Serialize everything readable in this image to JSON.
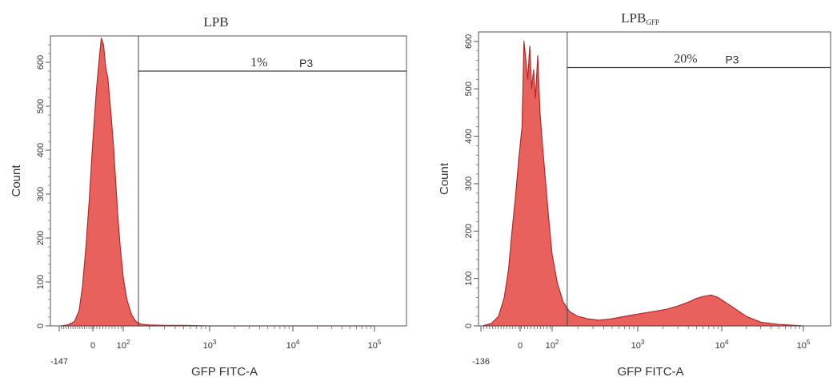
{
  "chart_data": [
    {
      "type": "area",
      "title": "LPB",
      "title_subscript": "",
      "xlabel": "GFP FITC-A",
      "ylabel": "Count",
      "x_scale": "biexponential",
      "xlim": [
        -147,
        100000
      ],
      "ylim": [
        0,
        660
      ],
      "x_ticks": [
        {
          "value": -147,
          "label": "-147",
          "exp": ""
        },
        {
          "value": 0,
          "label": "0",
          "exp": ""
        },
        {
          "value": 100,
          "label": "10",
          "exp": "2"
        },
        {
          "value": 1000,
          "label": "10",
          "exp": "3"
        },
        {
          "value": 10000,
          "label": "10",
          "exp": "4"
        },
        {
          "value": 100000,
          "label": "10",
          "exp": "5"
        }
      ],
      "y_ticks": [
        0,
        100,
        200,
        300,
        400,
        500,
        600
      ],
      "fill_color": "#e8615d",
      "edge_color": "#b22a28",
      "gate": {
        "name": "P3",
        "percent": "1%",
        "x_start": 150,
        "y_level": 580
      },
      "histogram": {
        "x": [
          -140,
          -110,
          -80,
          -60,
          -45,
          -30,
          -15,
          -5,
          0,
          5,
          12,
          20,
          28,
          35,
          42,
          50,
          55,
          60,
          68,
          75,
          82,
          90,
          100,
          110,
          125,
          140,
          160,
          200,
          300,
          500,
          1000,
          3000,
          100000
        ],
        "y": [
          0,
          2,
          10,
          35,
          90,
          180,
          290,
          380,
          420,
          470,
          540,
          600,
          655,
          640,
          590,
          560,
          520,
          480,
          410,
          330,
          250,
          180,
          110,
          60,
          25,
          10,
          4,
          2,
          1,
          1,
          0,
          0,
          0
        ]
      }
    },
    {
      "type": "area",
      "title": "LPB",
      "title_subscript": "GFP",
      "xlabel": "GFP FITC-A",
      "ylabel": "Count",
      "x_scale": "biexponential",
      "xlim": [
        -136,
        100000
      ],
      "ylim": [
        0,
        620
      ],
      "x_ticks": [
        {
          "value": -136,
          "label": "-136",
          "exp": ""
        },
        {
          "value": 0,
          "label": "0",
          "exp": ""
        },
        {
          "value": 100,
          "label": "10",
          "exp": "2"
        },
        {
          "value": 1000,
          "label": "10",
          "exp": "3"
        },
        {
          "value": 10000,
          "label": "10",
          "exp": "4"
        },
        {
          "value": 100000,
          "label": "10",
          "exp": "5"
        }
      ],
      "y_ticks": [
        0,
        100,
        200,
        300,
        400,
        500,
        600
      ],
      "fill_color": "#e8615d",
      "edge_color": "#b22a28",
      "gate": {
        "name": "P3",
        "percent": "20%",
        "x_start": 150,
        "y_level": 545
      },
      "histogram": {
        "x": [
          -130,
          -100,
          -75,
          -55,
          -40,
          -28,
          -15,
          -5,
          0,
          6,
          12,
          18,
          24,
          30,
          36,
          42,
          48,
          55,
          62,
          70,
          80,
          90,
          100,
          115,
          135,
          160,
          200,
          260,
          350,
          500,
          700,
          1000,
          1500,
          2200,
          3000,
          4000,
          5000,
          6000,
          7500,
          9000,
          11000,
          14000,
          20000,
          30000,
          50000,
          80000,
          100000
        ],
        "y": [
          0,
          5,
          20,
          60,
          120,
          200,
          280,
          350,
          380,
          420,
          600,
          560,
          520,
          590,
          500,
          540,
          480,
          570,
          450,
          380,
          300,
          220,
          150,
          90,
          50,
          30,
          20,
          15,
          12,
          15,
          20,
          25,
          30,
          35,
          42,
          50,
          58,
          62,
          65,
          60,
          50,
          38,
          20,
          8,
          3,
          1,
          0
        ]
      }
    }
  ]
}
